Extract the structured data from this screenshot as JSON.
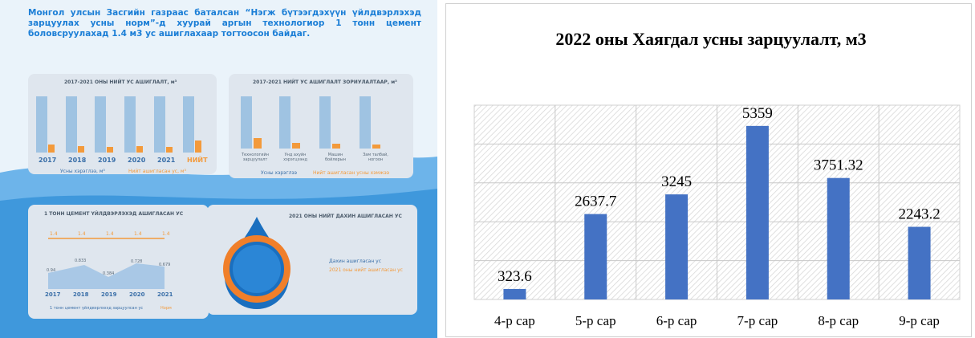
{
  "infographic": {
    "header": "Монгол улсын Засгийн газраас баталсан “Нэгж бүтээгдэхүүн үйлдвэрлэхэд зарцуулах усны норм”-д хуурай аргын технологиор 1 тонн цемент боловсруулахад 1.4 м3 ус ашиглахаар тогтоосон байдаг.",
    "water_use": {
      "title": "2017-2021 ОНЫ НИЙТ УС АШИГЛАЛТ, м³",
      "years": [
        "2017",
        "2018",
        "2019",
        "2020",
        "2021",
        "НИЙТ"
      ],
      "legend": [
        "Усны хэрэглээ, м³",
        "Нийт ашигласан ус, м³"
      ]
    },
    "water_by_purpose": {
      "title": "2017-2021 НИЙТ УС АШИГЛАЛТ ЗОРИУЛАЛТААР, м³",
      "categories": [
        "Технологийн зарцуулалт",
        "Унд ахуйн хэрэгцээнд",
        "Машин бойлерын",
        "Зам талбай, ногоон"
      ],
      "legend": [
        "Усны хэрэглээ",
        "Нийт ашигласан усны хэмжээ"
      ]
    },
    "cement_water": {
      "title": "1 ТОНН ЦЕМЕНТ ҮЙЛДВЭРЛЭХЭД АШИГЛАСАН УС",
      "norm_labels": [
        "1.4",
        "1.4",
        "1.4",
        "1.4",
        "1.4"
      ],
      "value_labels": [
        "0.94",
        "0.833",
        "0.384",
        "0.728",
        "0.679"
      ],
      "years": [
        "2017",
        "2018",
        "2019",
        "2020",
        "2021"
      ],
      "legend": [
        "1 тонн цемент үйлдвэрлэхэд зарцуулсан ус",
        "Норм"
      ]
    },
    "reused_water": {
      "title": "2021 ОНЫ НИЙТ ДАХИН АШИГЛАСАН УС",
      "legend": [
        "Дахин ашигласан ус",
        "2021 оны нийт ашигласан ус"
      ]
    }
  },
  "chart_data": {
    "type": "bar",
    "title": "2022 оны Хаягдал усны зарцуулалт, м3",
    "categories": [
      "4-р сар",
      "5-р сар",
      "6-р сар",
      "7-р сар",
      "8-р сар",
      "9-р сар"
    ],
    "values": [
      323.6,
      2637.7,
      3245,
      5359,
      3751.32,
      2243.2
    ],
    "color": "#4472c4",
    "ylim": [
      0,
      6000
    ],
    "grid": true
  }
}
